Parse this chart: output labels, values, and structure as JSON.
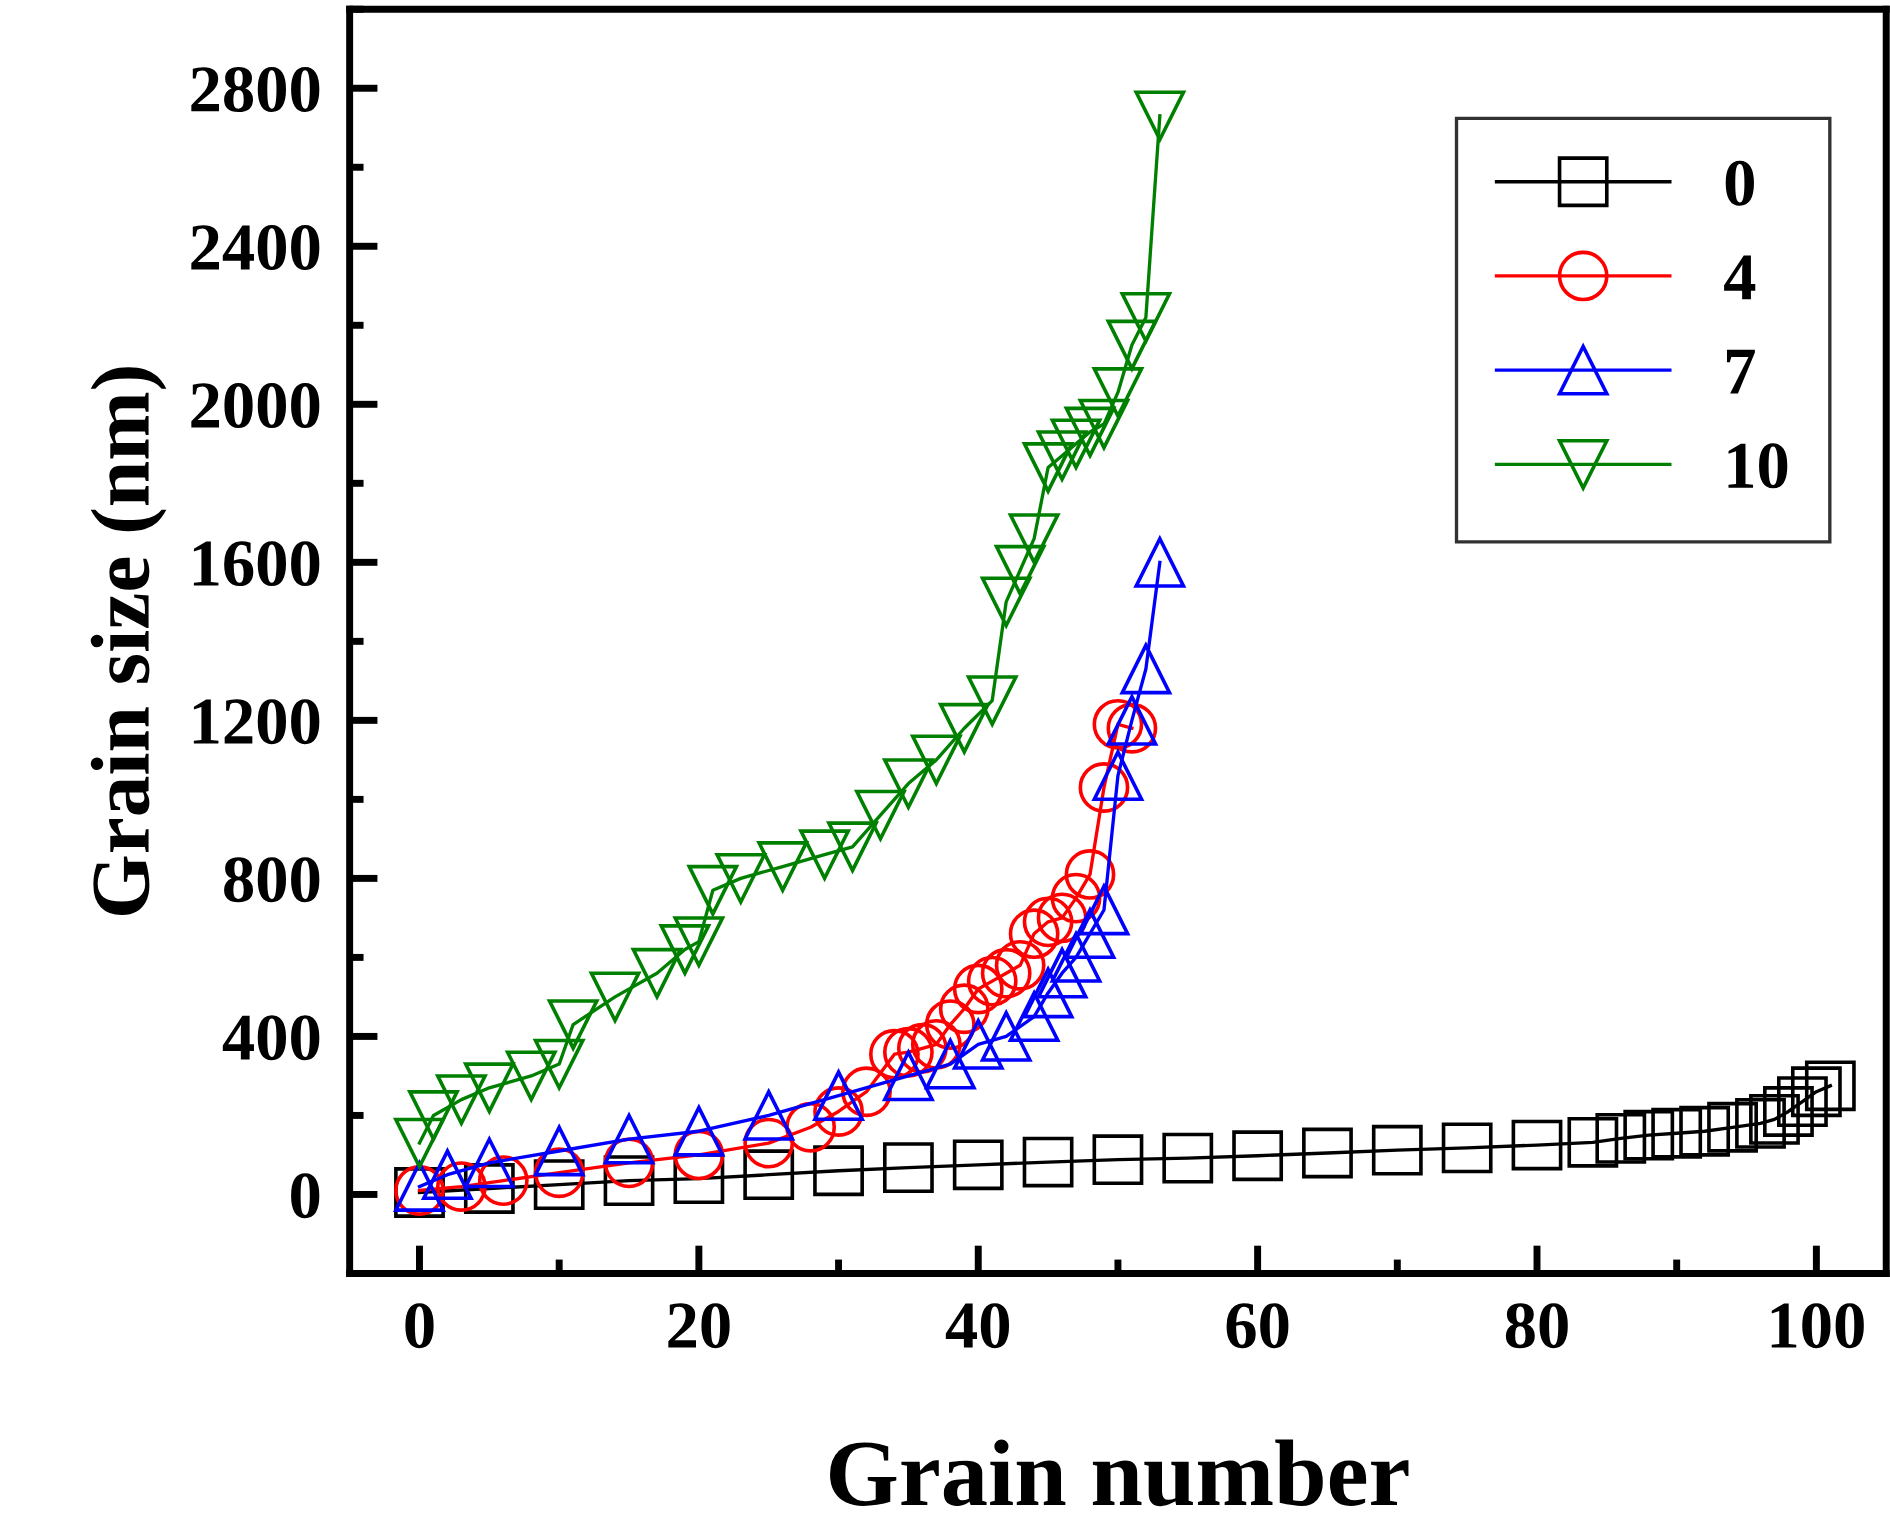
{
  "chart_data": {
    "type": "line",
    "xlabel": "Grain number",
    "ylabel": "Grain size (nm)",
    "xlim": [
      -5,
      105
    ],
    "xticks": [
      0,
      20,
      40,
      60,
      80,
      100
    ],
    "ylim": [
      -200,
      3000
    ],
    "yticks": [
      0,
      400,
      800,
      1200,
      1600,
      2000,
      2400,
      2800
    ],
    "legend": "top right",
    "grid": false,
    "line_style": "solid",
    "series": [
      {
        "name": "0",
        "color": "#000000",
        "marker": "square",
        "x": [
          0,
          5,
          10,
          15,
          20,
          25,
          30,
          35,
          40,
          45,
          50,
          55,
          60,
          65,
          70,
          75,
          80,
          84,
          86,
          88,
          90,
          92,
          94,
          96,
          97,
          98,
          99,
          100,
          101
        ],
        "values": [
          5,
          15,
          25,
          35,
          40,
          50,
          60,
          68,
          75,
          82,
          88,
          92,
          98,
          105,
          112,
          118,
          125,
          132,
          142,
          150,
          155,
          160,
          170,
          180,
          190,
          210,
          235,
          260,
          275
        ]
      },
      {
        "name": "4",
        "color": "#ff0000",
        "marker": "circle",
        "x": [
          0,
          3,
          6,
          10,
          15,
          20,
          25,
          28,
          30,
          32,
          34,
          35,
          36,
          37,
          38,
          39,
          40,
          41,
          42,
          43,
          44,
          45,
          46,
          47,
          48,
          49,
          50,
          51
        ],
        "values": [
          10,
          20,
          35,
          55,
          80,
          100,
          130,
          170,
          210,
          260,
          355,
          360,
          370,
          380,
          430,
          470,
          520,
          540,
          560,
          580,
          660,
          690,
          700,
          750,
          810,
          1030,
          1190,
          1180
        ]
      },
      {
        "name": "7",
        "color": "#0000ff",
        "marker": "triangle",
        "x": [
          0,
          2,
          5,
          10,
          15,
          20,
          25,
          30,
          35,
          38,
          40,
          42,
          44,
          45,
          46,
          47,
          48,
          49,
          50,
          51,
          52,
          53
        ],
        "values": [
          20,
          50,
          80,
          110,
          140,
          160,
          200,
          250,
          300,
          330,
          380,
          400,
          450,
          510,
          560,
          600,
          660,
          720,
          1060,
          1200,
          1330,
          1600
        ]
      },
      {
        "name": "10",
        "color": "#008000",
        "marker": "triangle_down",
        "x": [
          0,
          1,
          3,
          5,
          8,
          10,
          11,
          14,
          17,
          19,
          20,
          21,
          23,
          26,
          29,
          31,
          33,
          35,
          37,
          39,
          41,
          42,
          43,
          44,
          45,
          46,
          47,
          48,
          49,
          50,
          51,
          52,
          53
        ],
        "values": [
          130,
          200,
          240,
          270,
          300,
          330,
          430,
          500,
          560,
          620,
          640,
          770,
          800,
          830,
          860,
          880,
          960,
          1040,
          1100,
          1180,
          1250,
          1500,
          1580,
          1660,
          1840,
          1870,
          1900,
          1930,
          1950,
          2030,
          2150,
          2220,
          2730
        ]
      }
    ]
  }
}
